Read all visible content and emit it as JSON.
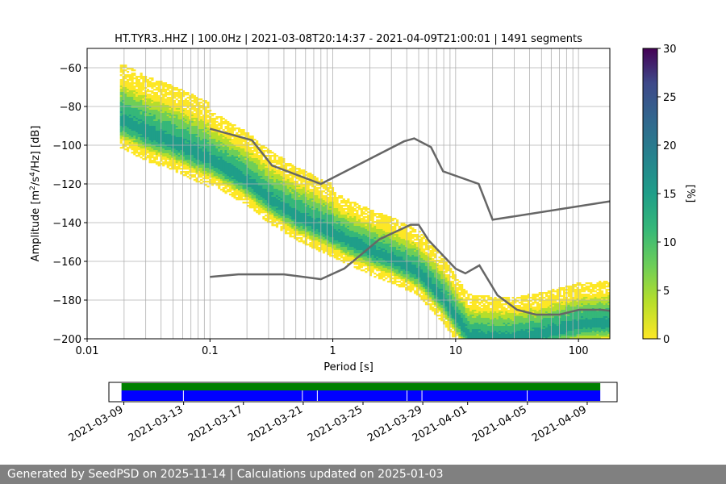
{
  "chart_data": [
    {
      "type": "heatmap",
      "title": "HT.TYR3..HHZ | 100.0Hz | 2021-03-08T20:14:37 - 2021-04-09T21:00:01 | 1491 segments",
      "xlabel": "Period [s]",
      "ylabel_parts": [
        "Amplitude [m",
        "2",
        "/s",
        "4",
        "/Hz] [dB]"
      ],
      "xscale": "log",
      "xlim": [
        0.01,
        180
      ],
      "ylim": [
        -200,
        -50
      ],
      "xticks": [
        0.01,
        0.1,
        1,
        10,
        100
      ],
      "xtick_labels": [
        "0.01",
        "0.1",
        "1",
        "10",
        "100"
      ],
      "yticks": [
        -200,
        -180,
        -160,
        -140,
        -120,
        -100,
        -80,
        -60
      ],
      "ytick_labels": [
        "−200",
        "−180",
        "−160",
        "−140",
        "−120",
        "−100",
        "−80",
        "−60"
      ],
      "grid": true,
      "colormap": "viridis",
      "colorbar": {
        "label": "[%]",
        "range": [
          0,
          30
        ],
        "ticks": [
          0,
          5,
          10,
          15,
          20,
          25,
          30
        ],
        "tick_labels": [
          "0",
          "5",
          "10",
          "15",
          "20",
          "25",
          "30"
        ]
      },
      "series": [
        {
          "name": "PSD probability mode",
          "x": [
            0.02,
            0.03,
            0.05,
            0.1,
            0.2,
            0.3,
            0.5,
            1,
            2,
            3,
            5,
            8,
            10,
            13,
            20,
            30,
            50,
            100,
            180
          ],
          "y": [
            -88,
            -94,
            -99,
            -108,
            -119,
            -128,
            -137,
            -146,
            -155,
            -159,
            -166,
            -180,
            -189,
            -199,
            -200,
            -200,
            -198,
            -193,
            -192
          ]
        },
        {
          "name": "High noise model",
          "x": [
            0.1,
            0.22,
            0.32,
            0.8,
            3.8,
            4.6,
            6.3,
            7.9,
            15.4,
            20,
            180
          ],
          "y": [
            -91.5,
            -97.4,
            -110.5,
            -120,
            -98,
            -96.5,
            -101,
            -113.5,
            -120,
            -138.5,
            -129
          ]
        },
        {
          "name": "Low noise model",
          "x": [
            0.1,
            0.17,
            0.4,
            0.8,
            1.24,
            2.4,
            4.3,
            5,
            6,
            10,
            12,
            15.6,
            21.9,
            31.6,
            45,
            70,
            101,
            154,
            180
          ],
          "y": [
            -168,
            -166.7,
            -166.7,
            -169.2,
            -163.7,
            -148.6,
            -141.1,
            -141.1,
            -149,
            -163.8,
            -166.2,
            -162.1,
            -177.5,
            -185,
            -187.5,
            -187.5,
            -185,
            -185,
            -185.5
          ]
        }
      ]
    },
    {
      "type": "timeline",
      "xlim": [
        "2021-03-08",
        "2021-04-11"
      ],
      "tick_labels": [
        "2021-03-09",
        "2021-03-13",
        "2021-03-17",
        "2021-03-21",
        "2021-03-25",
        "2021-03-29",
        "2021-04-01",
        "2021-04-05",
        "2021-04-09"
      ],
      "tick_dates": [
        "2021-03-09",
        "2021-03-13",
        "2021-03-17",
        "2021-03-21",
        "2021-03-25",
        "2021-03-29",
        "2021-04-01",
        "2021-04-05",
        "2021-04-09"
      ],
      "coverage_start": "2021-03-08T20:14:37",
      "coverage_end": "2021-04-09T21:00:01",
      "gap_dates": [
        "2021-03-12T23:00",
        "2021-03-20T22:00",
        "2021-03-21T22:00",
        "2021-03-27T22:00",
        "2021-03-28T22:00",
        "2021-04-04T23:00"
      ],
      "colors": {
        "data": "#0000ff",
        "available": "#008000"
      }
    }
  ],
  "footer": {
    "text": "Generated by SeedPSD on 2025-11-14 | Calculations updated on 2025-01-03"
  }
}
